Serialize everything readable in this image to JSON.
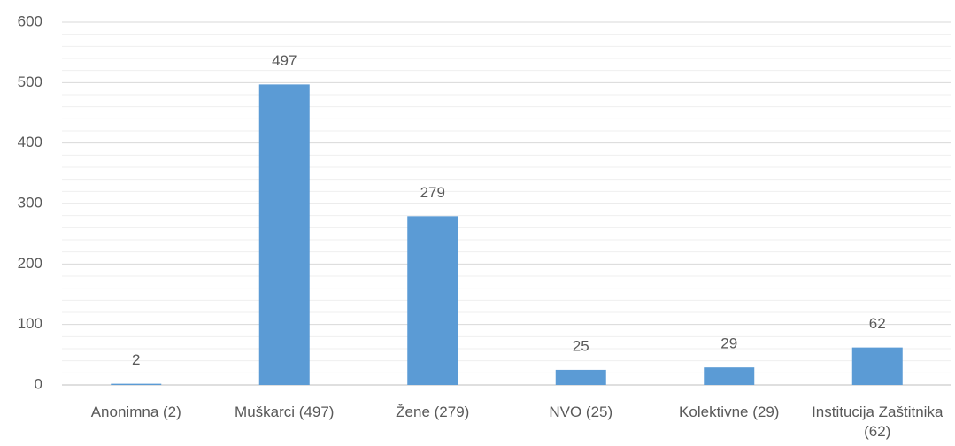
{
  "chart_data": {
    "type": "bar",
    "categories": [
      "Anonimna (2)",
      "Muškarci (497)",
      "Žene (279)",
      "NVO (25)",
      "Kolektivne (29)",
      "Institucija Zaštitnika (62)"
    ],
    "values": [
      2,
      497,
      279,
      25,
      29,
      62
    ],
    "color": "#5b9bd5",
    "ylim": [
      0,
      600
    ],
    "yticks": [
      0,
      100,
      200,
      300,
      400,
      500,
      600
    ],
    "minor_yticks": [
      20,
      40,
      60,
      80,
      120,
      140,
      160,
      180,
      220,
      240,
      260,
      280,
      320,
      340,
      360,
      380,
      420,
      440,
      460,
      480,
      520,
      540,
      560,
      580
    ],
    "grid": true,
    "data_labels": true
  }
}
